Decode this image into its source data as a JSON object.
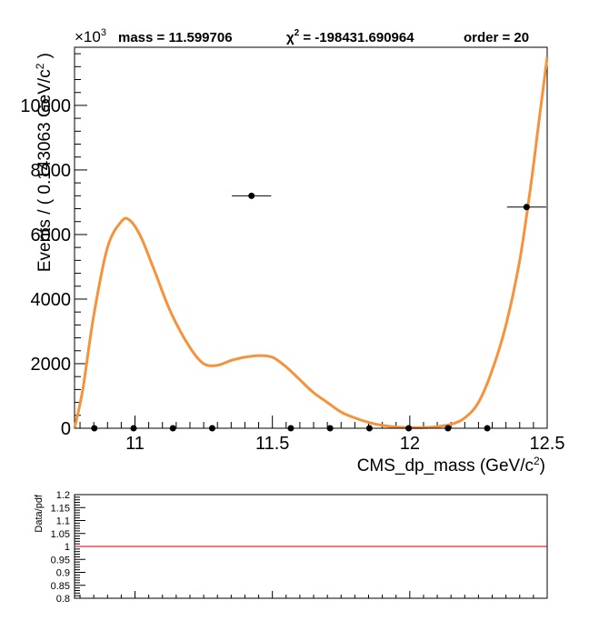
{
  "header": {
    "multiplier": "×10",
    "multiplier_exp": "3",
    "mass_text": "mass = 11.599706",
    "chi_symbol": "χ",
    "chi_exp": "2",
    "chi_value": " = -198431.690964",
    "order_text": "order = 20"
  },
  "chart_data": [
    {
      "type": "scatter",
      "xlabel": "CMS_dp_mass (GeV/c",
      "xlabel_sup": "2",
      "xlabel_tail": ")",
      "ylabel": "Events / ( 0.143063 GeV/c",
      "ylabel_sup": "2",
      "ylabel_tail": " )",
      "xlim": [
        10.78,
        12.5
      ],
      "ylim": [
        0,
        11800
      ],
      "x_ticks": [
        11,
        11.5,
        12,
        12.5
      ],
      "x_tick_labels": [
        "11",
        "11.5",
        "12",
        "12.5"
      ],
      "y_ticks": [
        0,
        2000,
        4000,
        6000,
        8000,
        10000
      ],
      "y_tick_labels": [
        "0",
        "2000",
        "4000",
        "6000",
        "8000",
        "10000"
      ],
      "curve_color": "#f5923a",
      "points": [
        {
          "x": 10.852,
          "y": 0,
          "xerr": 0.0715
        },
        {
          "x": 10.995,
          "y": 0,
          "xerr": 0.0715
        },
        {
          "x": 11.138,
          "y": 0,
          "xerr": 0.0715
        },
        {
          "x": 11.281,
          "y": 0,
          "xerr": 0.0715
        },
        {
          "x": 11.424,
          "y": 7200,
          "xerr": 0.0715
        },
        {
          "x": 11.567,
          "y": 0,
          "xerr": 0.0715
        },
        {
          "x": 11.71,
          "y": 0,
          "xerr": 0.0715
        },
        {
          "x": 11.853,
          "y": 0,
          "xerr": 0.0715
        },
        {
          "x": 11.996,
          "y": 0,
          "xerr": 0.0715
        },
        {
          "x": 12.139,
          "y": 0,
          "xerr": 0.0715
        },
        {
          "x": 12.282,
          "y": 0,
          "xerr": 0.0715
        },
        {
          "x": 12.425,
          "y": 6850,
          "xerr": 0.0715
        }
      ],
      "curve": {
        "name": "pdf",
        "x": [
          10.78,
          10.81,
          10.85,
          10.9,
          10.95,
          10.98,
          11.02,
          11.07,
          11.13,
          11.2,
          11.25,
          11.3,
          11.35,
          11.4,
          11.45,
          11.5,
          11.55,
          11.6,
          11.65,
          11.7,
          11.75,
          11.8,
          11.85,
          11.9,
          11.95,
          12.0,
          12.05,
          12.1,
          12.15,
          12.2,
          12.25,
          12.3,
          12.35,
          12.4,
          12.44,
          12.47,
          12.5
        ],
        "y": [
          0,
          1200,
          3500,
          5600,
          6400,
          6450,
          5950,
          4900,
          3600,
          2500,
          2000,
          1950,
          2100,
          2200,
          2250,
          2200,
          1900,
          1500,
          1100,
          800,
          500,
          320,
          180,
          90,
          40,
          20,
          20,
          50,
          120,
          320,
          800,
          1800,
          3200,
          5200,
          7500,
          9500,
          11500
        ]
      }
    },
    {
      "type": "line",
      "ylabel": "Data/pdf",
      "ylim": [
        0.8,
        1.2
      ],
      "y_ticks": [
        0.8,
        0.85,
        0.9,
        0.95,
        1,
        1.05,
        1.1,
        1.15,
        1.2
      ],
      "y_tick_labels": [
        "0.8",
        "0.85",
        "0.9",
        "0.95",
        "1",
        "1.05",
        "1.1",
        "1.15",
        "1.2"
      ],
      "reference_value": 1,
      "line_color": "#cc0000"
    }
  ]
}
